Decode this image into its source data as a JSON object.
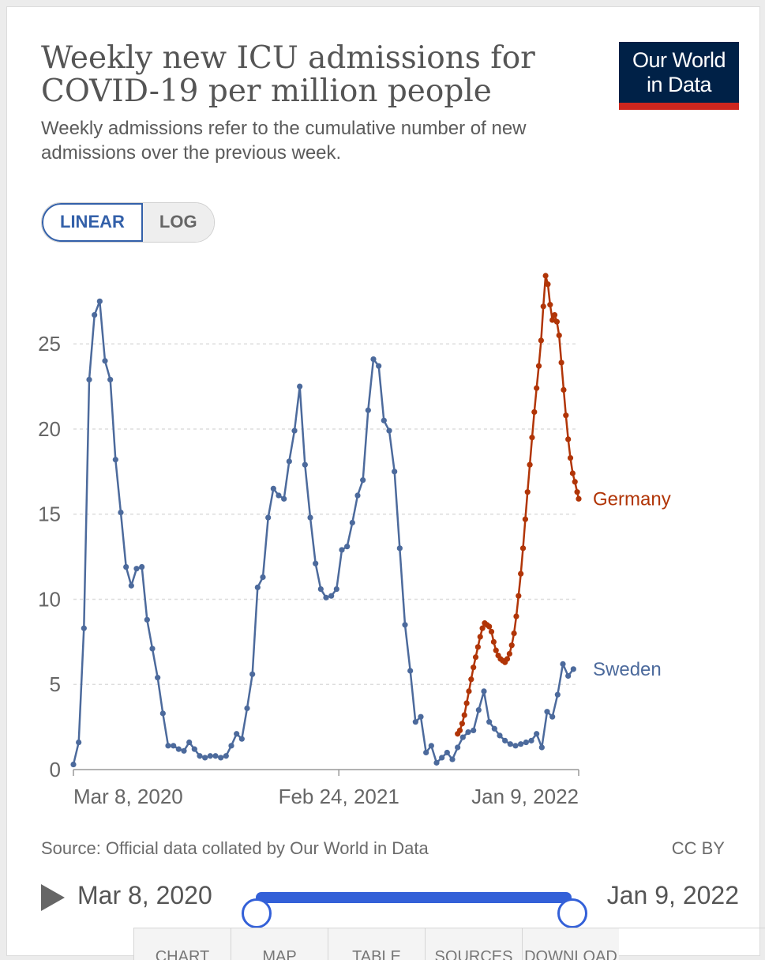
{
  "header": {
    "title": "Weekly new ICU admissions for COVID-19 per million people",
    "subtitle": "Weekly admissions refer to the cumulative number of new admissions over the previous week.",
    "logo_line1": "Our World",
    "logo_line2": "in Data"
  },
  "scale_toggle": {
    "linear": "LINEAR",
    "log": "LOG",
    "selected": "LINEAR"
  },
  "footer": {
    "source": "Source: Official data collated by Our World in Data",
    "license": "CC BY"
  },
  "timeline": {
    "start_label": "Mar 8, 2020",
    "end_label": "Jan 9, 2022",
    "range_start_fraction": 0,
    "range_end_fraction": 1
  },
  "tabs": [
    {
      "label": "CHART"
    },
    {
      "label": "MAP"
    },
    {
      "label": "TABLE"
    },
    {
      "label": "SOURCES"
    },
    {
      "label": "DOWNLOAD"
    }
  ],
  "colors": {
    "sweden": "#4c6a9c",
    "germany": "#b13507",
    "grid": "#dddddd"
  },
  "chart_data": {
    "type": "line",
    "title": "Weekly new ICU admissions for COVID-19 per million people",
    "xlabel": "",
    "ylabel": "",
    "ylim": [
      0,
      29
    ],
    "xlim": [
      "2020-03-08",
      "2022-01-09"
    ],
    "y_ticks": [
      0,
      5,
      10,
      15,
      20,
      25
    ],
    "x_ticks": [
      {
        "date": "2020-03-08",
        "label": "Mar 8, 2020"
      },
      {
        "date": "2021-02-24",
        "label": "Feb 24, 2021"
      },
      {
        "date": "2022-01-09",
        "label": "Jan 9, 2022"
      }
    ],
    "grid": "horizontal dashed",
    "legend": "line-end labels",
    "series": [
      {
        "name": "Sweden",
        "points": [
          [
            "2020-03-08",
            0.3
          ],
          [
            "2020-03-15",
            1.6
          ],
          [
            "2020-03-22",
            8.3
          ],
          [
            "2020-03-29",
            22.9
          ],
          [
            "2020-04-05",
            26.7
          ],
          [
            "2020-04-12",
            27.5
          ],
          [
            "2020-04-19",
            24.0
          ],
          [
            "2020-04-26",
            22.9
          ],
          [
            "2020-05-03",
            18.2
          ],
          [
            "2020-05-10",
            15.1
          ],
          [
            "2020-05-17",
            11.9
          ],
          [
            "2020-05-24",
            10.8
          ],
          [
            "2020-05-31",
            11.8
          ],
          [
            "2020-06-07",
            11.9
          ],
          [
            "2020-06-14",
            8.8
          ],
          [
            "2020-06-21",
            7.1
          ],
          [
            "2020-06-28",
            5.4
          ],
          [
            "2020-07-05",
            3.3
          ],
          [
            "2020-07-12",
            1.4
          ],
          [
            "2020-07-19",
            1.4
          ],
          [
            "2020-07-26",
            1.2
          ],
          [
            "2020-08-02",
            1.1
          ],
          [
            "2020-08-09",
            1.6
          ],
          [
            "2020-08-16",
            1.2
          ],
          [
            "2020-08-23",
            0.8
          ],
          [
            "2020-08-30",
            0.7
          ],
          [
            "2020-09-06",
            0.8
          ],
          [
            "2020-09-13",
            0.8
          ],
          [
            "2020-09-20",
            0.7
          ],
          [
            "2020-09-27",
            0.8
          ],
          [
            "2020-10-04",
            1.4
          ],
          [
            "2020-10-11",
            2.1
          ],
          [
            "2020-10-18",
            1.8
          ],
          [
            "2020-10-25",
            3.6
          ],
          [
            "2020-11-01",
            5.6
          ],
          [
            "2020-11-08",
            10.7
          ],
          [
            "2020-11-15",
            11.3
          ],
          [
            "2020-11-22",
            14.8
          ],
          [
            "2020-11-29",
            16.5
          ],
          [
            "2020-12-06",
            16.1
          ],
          [
            "2020-12-13",
            15.9
          ],
          [
            "2020-12-20",
            18.1
          ],
          [
            "2020-12-27",
            19.9
          ],
          [
            "2021-01-03",
            22.5
          ],
          [
            "2021-01-10",
            17.9
          ],
          [
            "2021-01-17",
            14.8
          ],
          [
            "2021-01-24",
            12.1
          ],
          [
            "2021-01-31",
            10.6
          ],
          [
            "2021-02-07",
            10.1
          ],
          [
            "2021-02-14",
            10.2
          ],
          [
            "2021-02-21",
            10.6
          ],
          [
            "2021-02-28",
            12.9
          ],
          [
            "2021-03-07",
            13.1
          ],
          [
            "2021-03-14",
            14.5
          ],
          [
            "2021-03-21",
            16.1
          ],
          [
            "2021-03-28",
            17.0
          ],
          [
            "2021-04-04",
            21.1
          ],
          [
            "2021-04-11",
            24.1
          ],
          [
            "2021-04-18",
            23.7
          ],
          [
            "2021-04-25",
            20.5
          ],
          [
            "2021-05-02",
            19.9
          ],
          [
            "2021-05-09",
            17.5
          ],
          [
            "2021-05-16",
            13.0
          ],
          [
            "2021-05-23",
            8.5
          ],
          [
            "2021-05-30",
            5.8
          ],
          [
            "2021-06-06",
            2.8
          ],
          [
            "2021-06-13",
            3.1
          ],
          [
            "2021-06-20",
            1.0
          ],
          [
            "2021-06-27",
            1.4
          ],
          [
            "2021-07-04",
            0.4
          ],
          [
            "2021-07-11",
            0.7
          ],
          [
            "2021-07-18",
            1.0
          ],
          [
            "2021-07-25",
            0.6
          ],
          [
            "2021-08-01",
            1.3
          ],
          [
            "2021-08-08",
            1.9
          ],
          [
            "2021-08-15",
            2.2
          ],
          [
            "2021-08-22",
            2.3
          ],
          [
            "2021-08-29",
            3.5
          ],
          [
            "2021-09-05",
            4.6
          ],
          [
            "2021-09-12",
            2.8
          ],
          [
            "2021-09-19",
            2.4
          ],
          [
            "2021-09-26",
            2.0
          ],
          [
            "2021-10-03",
            1.7
          ],
          [
            "2021-10-10",
            1.5
          ],
          [
            "2021-10-17",
            1.4
          ],
          [
            "2021-10-24",
            1.5
          ],
          [
            "2021-10-31",
            1.6
          ],
          [
            "2021-11-07",
            1.7
          ],
          [
            "2021-11-14",
            2.1
          ],
          [
            "2021-11-21",
            1.3
          ],
          [
            "2021-11-28",
            3.4
          ],
          [
            "2021-12-05",
            3.1
          ],
          [
            "2021-12-12",
            4.4
          ],
          [
            "2021-12-19",
            6.2
          ],
          [
            "2021-12-26",
            5.5
          ],
          [
            "2022-01-02",
            5.9
          ]
        ]
      },
      {
        "name": "Germany",
        "points": [
          [
            "2021-08-01",
            2.1
          ],
          [
            "2021-08-04",
            2.3
          ],
          [
            "2021-08-07",
            2.7
          ],
          [
            "2021-08-10",
            3.2
          ],
          [
            "2021-08-13",
            3.9
          ],
          [
            "2021-08-16",
            4.6
          ],
          [
            "2021-08-19",
            5.3
          ],
          [
            "2021-08-22",
            6.0
          ],
          [
            "2021-08-25",
            6.6
          ],
          [
            "2021-08-28",
            7.2
          ],
          [
            "2021-08-31",
            7.8
          ],
          [
            "2021-09-03",
            8.3
          ],
          [
            "2021-09-06",
            8.6
          ],
          [
            "2021-09-09",
            8.5
          ],
          [
            "2021-09-12",
            8.4
          ],
          [
            "2021-09-15",
            8.1
          ],
          [
            "2021-09-18",
            7.5
          ],
          [
            "2021-09-21",
            7.0
          ],
          [
            "2021-09-24",
            6.7
          ],
          [
            "2021-09-27",
            6.5
          ],
          [
            "2021-09-30",
            6.4
          ],
          [
            "2021-10-03",
            6.3
          ],
          [
            "2021-10-06",
            6.5
          ],
          [
            "2021-10-09",
            6.8
          ],
          [
            "2021-10-12",
            7.3
          ],
          [
            "2021-10-15",
            8.0
          ],
          [
            "2021-10-18",
            9.0
          ],
          [
            "2021-10-21",
            10.2
          ],
          [
            "2021-10-24",
            11.5
          ],
          [
            "2021-10-27",
            13.0
          ],
          [
            "2021-10-30",
            14.7
          ],
          [
            "2021-11-02",
            16.3
          ],
          [
            "2021-11-05",
            17.9
          ],
          [
            "2021-11-08",
            19.5
          ],
          [
            "2021-11-11",
            21.0
          ],
          [
            "2021-11-14",
            22.4
          ],
          [
            "2021-11-17",
            23.7
          ],
          [
            "2021-11-20",
            25.2
          ],
          [
            "2021-11-23",
            27.2
          ],
          [
            "2021-11-26",
            29.0
          ],
          [
            "2021-11-29",
            28.5
          ],
          [
            "2021-12-02",
            27.3
          ],
          [
            "2021-12-05",
            26.4
          ],
          [
            "2021-12-08",
            26.7
          ],
          [
            "2021-12-11",
            26.3
          ],
          [
            "2021-12-14",
            25.5
          ],
          [
            "2021-12-17",
            23.9
          ],
          [
            "2021-12-20",
            22.3
          ],
          [
            "2021-12-23",
            20.8
          ],
          [
            "2021-12-26",
            19.4
          ],
          [
            "2021-12-29",
            18.3
          ],
          [
            "2022-01-01",
            17.4
          ],
          [
            "2022-01-04",
            16.9
          ],
          [
            "2022-01-07",
            16.3
          ],
          [
            "2022-01-09",
            15.9
          ]
        ]
      }
    ]
  }
}
